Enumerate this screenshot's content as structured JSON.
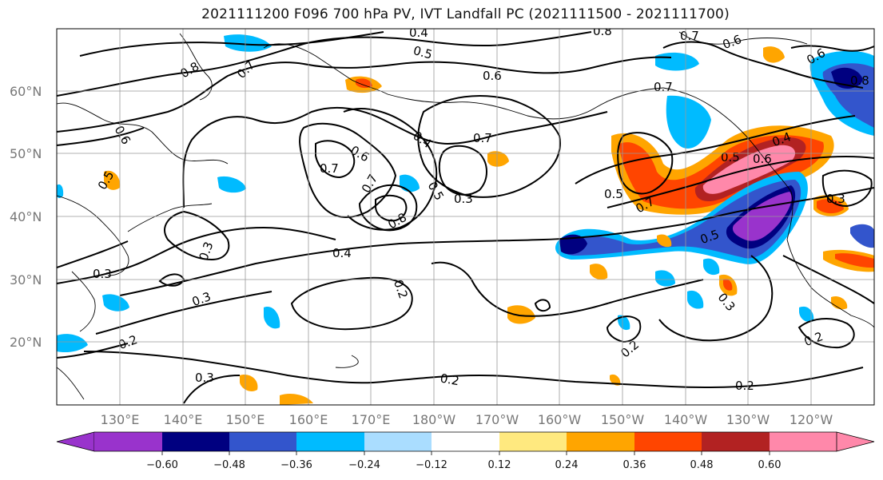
{
  "title": "2021111200 F096 700 hPa PV, IVT Landfall PC (2021111500 - 2021111700)",
  "map": {
    "lat_labels": [
      "60°N",
      "50°N",
      "40°N",
      "30°N",
      "20°N"
    ],
    "lon_labels": [
      "130°E",
      "140°E",
      "150°E",
      "160°E",
      "170°E",
      "180°W",
      "170°W",
      "160°W",
      "150°W",
      "140°W",
      "130°W",
      "120°W"
    ],
    "contour_labels": [
      "0.4",
      "0.8",
      "0.7",
      "0.5",
      "0.6",
      "0.8",
      "0.7",
      "0.6",
      "0.5",
      "0.6",
      "0.7",
      "0.4",
      "0.7",
      "0.5",
      "0.3",
      "0.7",
      "0.8",
      "0.6",
      "0.5",
      "0.4",
      "0.6",
      "0.7",
      "0.5",
      "0.7",
      "0.5",
      "0.3",
      "0.3",
      "0.4",
      "0.3",
      "0.2",
      "0.3",
      "0.2",
      "0.3",
      "0.2",
      "0.2",
      "0.2",
      "0.3",
      "0.2",
      "0.8",
      "0.6"
    ]
  },
  "colorbar": {
    "ticks": [
      "−0.60",
      "−0.48",
      "−0.36",
      "−0.24",
      "−0.12",
      "0.12",
      "0.24",
      "0.36",
      "0.48",
      "0.60"
    ],
    "colors": [
      "#9933cc",
      "#000080",
      "#3355cc",
      "#00bbff",
      "#aaddff",
      "#ffffff",
      "#ffe97f",
      "#ffa500",
      "#ff4500",
      "#b22222",
      "#ff88aa"
    ]
  }
}
